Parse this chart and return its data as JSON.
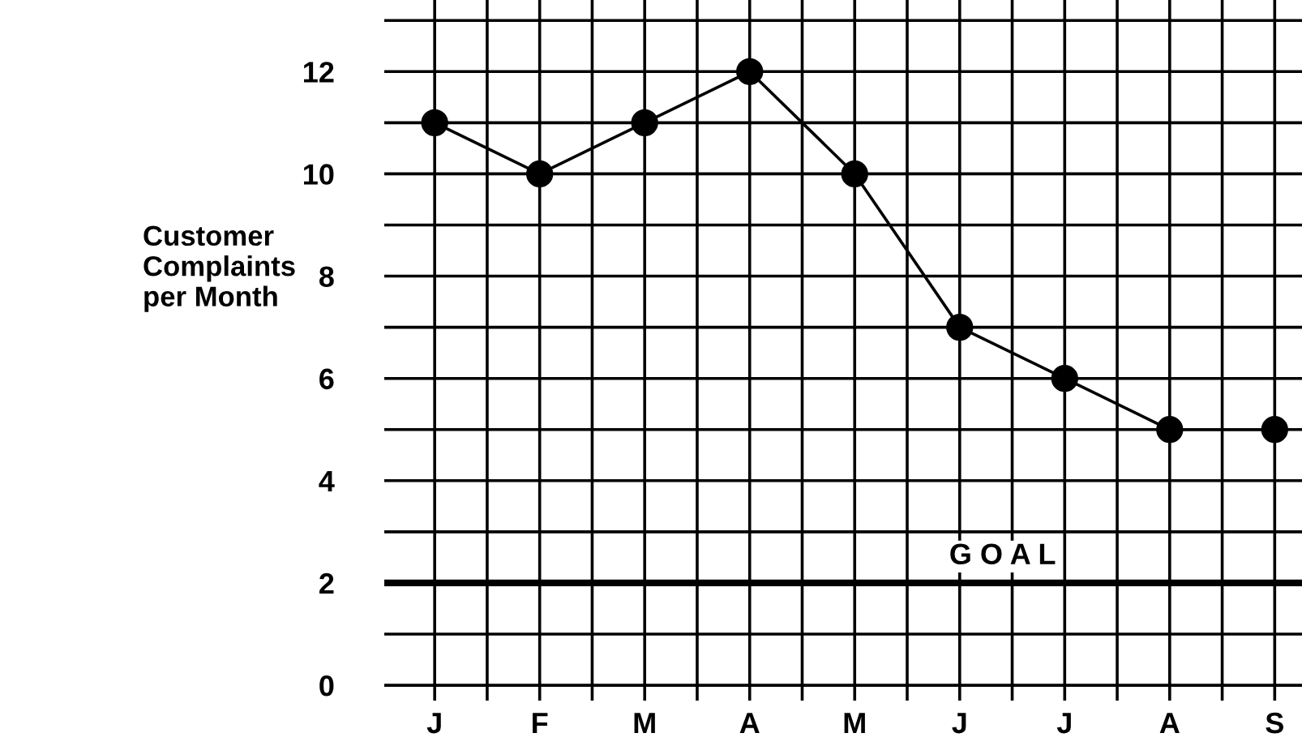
{
  "chart_data": {
    "type": "line",
    "ylabel": "Customer\nComplaints\nper Month",
    "categories": [
      "J",
      "F",
      "M",
      "A",
      "M",
      "J",
      "J",
      "A",
      "S"
    ],
    "series": [
      {
        "color": "#000000",
        "values": [
          11,
          10,
          11,
          12,
          10,
          7,
          6,
          5,
          5
        ]
      }
    ],
    "ylim": [
      -0.3,
      13.4
    ],
    "yticks": [
      0,
      {
        "value": 1,
        "label": null
      },
      2,
      {
        "value": 3,
        "label": null
      },
      4,
      {
        "value": 5,
        "label": null
      },
      6,
      {
        "value": 7,
        "label": null
      },
      8,
      {
        "value": 9,
        "label": null
      },
      10,
      {
        "value": 11,
        "label": null
      },
      12,
      {
        "value": 13,
        "label": null
      }
    ],
    "ref_lines": [
      {
        "axis": "y",
        "value": 2,
        "label": "G O A L",
        "color": "#000000"
      }
    ],
    "grid": true,
    "marker": "circle",
    "line_style": "solid",
    "legend": false
  }
}
